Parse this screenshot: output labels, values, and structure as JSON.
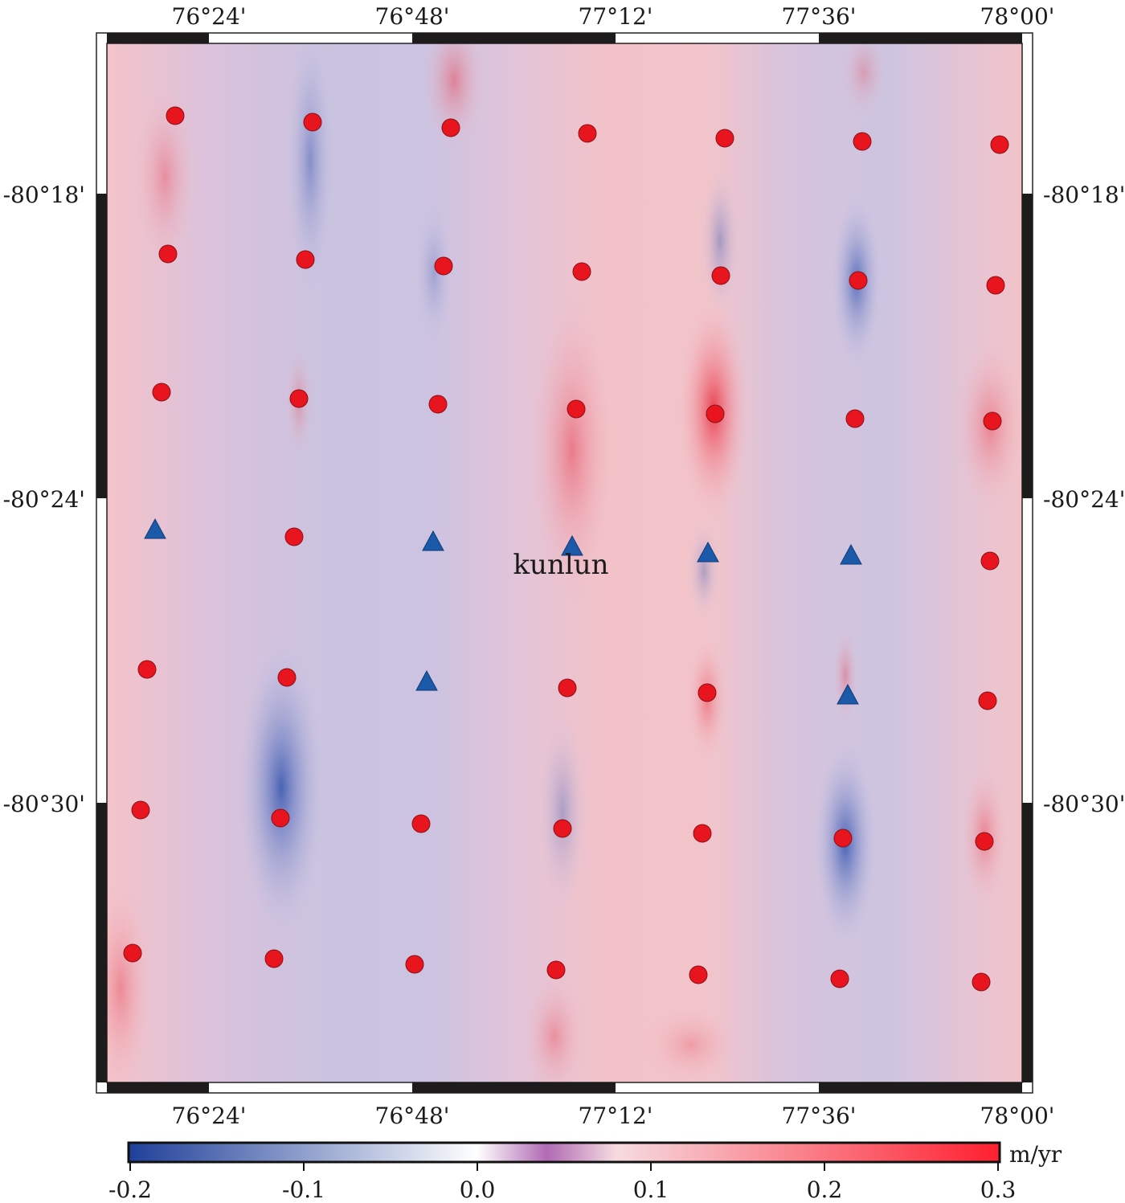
{
  "map": {
    "top_lon_labels": [
      "76°24'",
      "76°48'",
      "77°12'",
      "77°36'",
      "78°00'"
    ],
    "bottom_lon_labels": [
      "76°24'",
      "76°48'",
      "77°12'",
      "77°36'",
      "78°00'"
    ],
    "left_lat_labels": [
      "-80°18'",
      "-80°24'",
      "-80°30'"
    ],
    "right_lat_labels": [
      "-80°18'",
      "-80°24'",
      "-80°30'"
    ],
    "station_label": "kunlun"
  },
  "colorbar": {
    "unit": "m/yr",
    "tick_labels": [
      "-0.2",
      "-0.1",
      "0.0",
      "0.1",
      "0.2",
      "0.3"
    ],
    "min": -0.2,
    "max": 0.3,
    "colors": [
      "#1f3f99",
      "#ffffff",
      "#ff1f2f"
    ]
  },
  "markers": {
    "circle_color": "#e8141e",
    "triangle_color": "#1a5aa8",
    "circle_count": 42,
    "triangle_count": 7
  }
}
